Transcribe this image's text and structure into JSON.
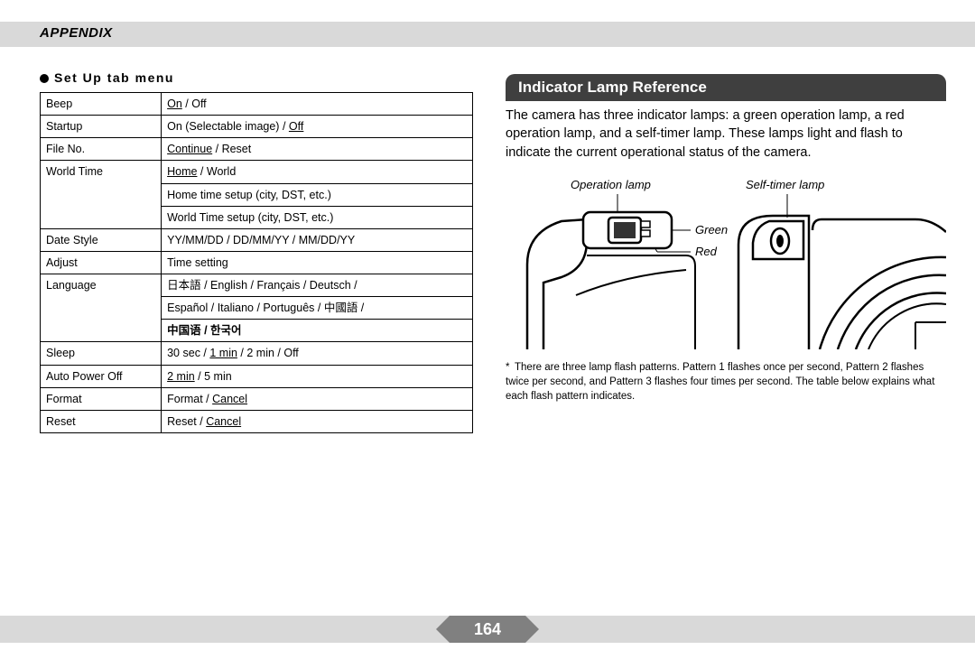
{
  "header": {
    "title": "APPENDIX"
  },
  "left": {
    "section_title": "Set Up tab menu",
    "rows": [
      {
        "k": "Beep",
        "v": [
          {
            "t": "On",
            "u": true
          },
          {
            "t": " / Off"
          }
        ]
      },
      {
        "k": "Startup",
        "v": [
          {
            "t": "On (Selectable image) / "
          },
          {
            "t": "Off",
            "u": true
          }
        ]
      },
      {
        "k": "File No.",
        "v": [
          {
            "t": "Continue",
            "u": true
          },
          {
            "t": " / Reset"
          }
        ]
      },
      {
        "k": "World Time",
        "rowspan": 3,
        "v": [
          {
            "t": "Home",
            "u": true
          },
          {
            "t": " / World"
          }
        ]
      },
      {
        "v": [
          {
            "t": "Home time setup (city, DST, etc.)"
          }
        ]
      },
      {
        "v": [
          {
            "t": "World Time setup (city, DST, etc.)"
          }
        ]
      },
      {
        "k": "Date Style",
        "v": [
          {
            "t": "YY/MM/DD / DD/MM/YY / MM/DD/YY"
          }
        ]
      },
      {
        "k": "Adjust",
        "v": [
          {
            "t": "Time setting"
          }
        ]
      },
      {
        "k": "Language",
        "rowspan": 3,
        "v": [
          {
            "t": "日本語 / English / Français / Deutsch /"
          }
        ]
      },
      {
        "v": [
          {
            "t": "Español / Italiano / Português / 中國語 /"
          }
        ]
      },
      {
        "v": [
          {
            "t": "中国语 / ",
            "b": true
          },
          {
            "t": "한국어",
            "b": true
          }
        ]
      },
      {
        "k": "Sleep",
        "v": [
          {
            "t": "30 sec / "
          },
          {
            "t": "1 min",
            "u": true
          },
          {
            "t": " / 2 min / Off"
          }
        ]
      },
      {
        "k": "Auto Power Off",
        "v": [
          {
            "t": "2 min",
            "u": true
          },
          {
            "t": " / 5 min"
          }
        ]
      },
      {
        "k": "Format",
        "v": [
          {
            "t": "Format / "
          },
          {
            "t": "Cancel",
            "u": true
          }
        ]
      },
      {
        "k": "Reset",
        "v": [
          {
            "t": "Reset / "
          },
          {
            "t": "Cancel",
            "u": true
          }
        ]
      }
    ]
  },
  "right": {
    "heading": "Indicator Lamp Reference",
    "body": "The camera has three indicator lamps: a green operation lamp, a red operation lamp, and a self-timer lamp. These lamps light and flash to indicate the current operational status of the camera.",
    "labels": {
      "operation": "Operation lamp",
      "selftimer": "Self-timer lamp",
      "green": "Green",
      "red": "Red"
    },
    "footnote": "There are three lamp flash patterns. Pattern 1 flashes once per second, Pattern 2 flashes twice per second, and Pattern 3 flashes four times per second. The table below explains what each flash pattern indicates."
  },
  "page_number": "164"
}
